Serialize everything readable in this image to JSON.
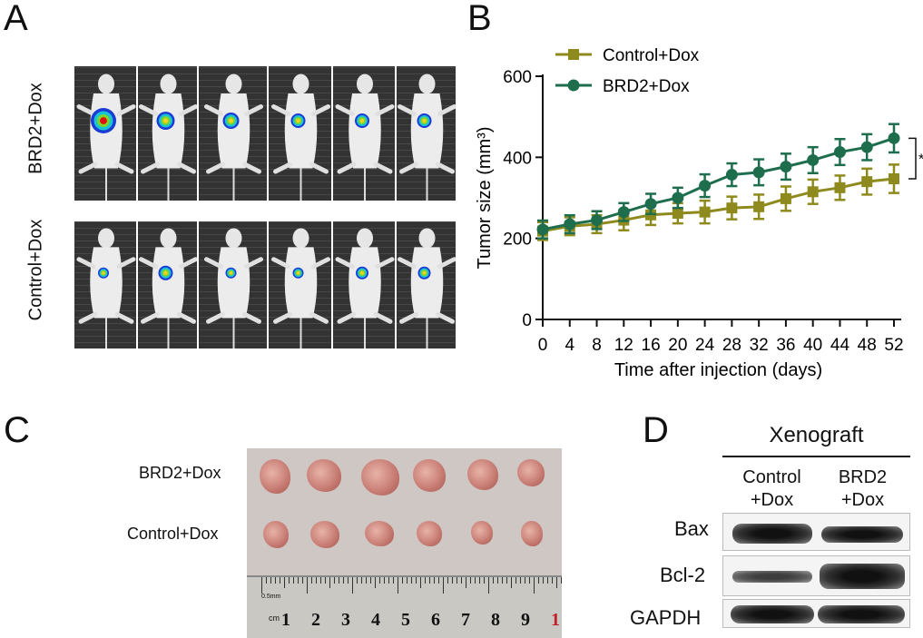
{
  "panels": {
    "a": "A",
    "b": "B",
    "c": "C",
    "d": "D"
  },
  "panel_a": {
    "row_labels": [
      "BRD2+Dox",
      "Control+Dox"
    ]
  },
  "chart_data": {
    "type": "line",
    "title": "",
    "xlabel": "Time after injection (days)",
    "ylabel": "Tumor size (mm³)",
    "x": [
      0,
      4,
      8,
      12,
      16,
      20,
      24,
      28,
      32,
      36,
      40,
      44,
      48,
      52
    ],
    "xticks": [
      "0",
      "4",
      "8",
      "12",
      "16",
      "20",
      "24",
      "28",
      "32",
      "36",
      "40",
      "44",
      "48",
      "52"
    ],
    "yticks": [
      "0",
      "200",
      "400",
      "600"
    ],
    "ylim": [
      0,
      600
    ],
    "xlim": [
      0,
      52
    ],
    "legend_position": "top-left",
    "grid": false,
    "series": [
      {
        "name": "Control+Dox",
        "color": "#8e8a1e",
        "marker": "square",
        "values": [
          218,
          230,
          235,
          245,
          258,
          262,
          265,
          275,
          278,
          298,
          315,
          325,
          340,
          347
        ],
        "errors": [
          22,
          22,
          22,
          25,
          25,
          25,
          28,
          28,
          30,
          30,
          30,
          30,
          32,
          35
        ]
      },
      {
        "name": "BRD2+Dox",
        "color": "#1e6e4e",
        "marker": "circle",
        "values": [
          222,
          235,
          245,
          265,
          285,
          300,
          330,
          357,
          363,
          377,
          393,
          413,
          425,
          447
        ],
        "errors": [
          22,
          22,
          22,
          22,
          25,
          25,
          28,
          28,
          32,
          32,
          32,
          32,
          32,
          35
        ]
      }
    ],
    "significance_marker": "*"
  },
  "panel_c": {
    "row_labels": [
      "BRD2+Dox",
      "Control+Dox"
    ],
    "ruler_unit": "0.5mm",
    "ruler_cm": "cm",
    "ruler_numbers": [
      "1",
      "2",
      "3",
      "4",
      "5",
      "6",
      "7",
      "8",
      "9",
      "1"
    ]
  },
  "panel_d": {
    "title": "Xenograft",
    "col_labels": [
      [
        "Control",
        "+Dox"
      ],
      [
        "BRD2",
        "+Dox"
      ]
    ],
    "row_labels": [
      "Bax",
      "Bcl-2",
      "GAPDH"
    ]
  }
}
